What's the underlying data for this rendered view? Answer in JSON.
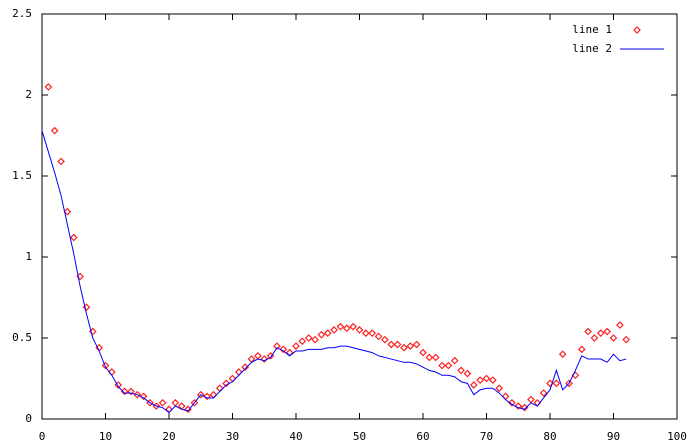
{
  "chart_data": {
    "type": "line",
    "xlim": [
      0,
      100
    ],
    "xticks": [
      0,
      10,
      20,
      30,
      40,
      50,
      60,
      70,
      80,
      90,
      100
    ],
    "ylim": [
      0,
      2.5
    ],
    "yticks": [
      0,
      0.5,
      1,
      1.5,
      2,
      2.5
    ],
    "legend": "top-right",
    "series": [
      {
        "name": "line 1",
        "style": "points",
        "color": "#ff2020",
        "x": [
          1,
          2,
          3,
          4,
          5,
          6,
          7,
          8,
          9,
          10,
          11,
          12,
          13,
          14,
          15,
          16,
          17,
          18,
          19,
          20,
          21,
          22,
          23,
          24,
          25,
          26,
          27,
          28,
          29,
          30,
          31,
          32,
          33,
          34,
          35,
          36,
          37,
          38,
          39,
          40,
          41,
          42,
          43,
          44,
          45,
          46,
          47,
          48,
          49,
          50,
          51,
          52,
          53,
          54,
          55,
          56,
          57,
          58,
          59,
          60,
          61,
          62,
          63,
          64,
          65,
          66,
          67,
          68,
          69,
          70,
          71,
          72,
          73,
          74,
          75,
          76,
          77,
          78,
          79,
          80,
          81,
          82,
          83,
          84,
          85,
          86,
          87,
          88,
          89,
          90,
          91,
          92
        ],
        "values": [
          2.05,
          1.78,
          1.59,
          1.28,
          1.12,
          0.88,
          0.69,
          0.54,
          0.44,
          0.33,
          0.29,
          0.21,
          0.17,
          0.17,
          0.15,
          0.14,
          0.1,
          0.08,
          0.1,
          0.06,
          0.1,
          0.08,
          0.06,
          0.1,
          0.15,
          0.14,
          0.15,
          0.19,
          0.22,
          0.25,
          0.29,
          0.32,
          0.37,
          0.39,
          0.37,
          0.39,
          0.45,
          0.43,
          0.41,
          0.45,
          0.48,
          0.5,
          0.49,
          0.52,
          0.53,
          0.55,
          0.57,
          0.56,
          0.57,
          0.55,
          0.53,
          0.53,
          0.51,
          0.49,
          0.46,
          0.46,
          0.44,
          0.45,
          0.46,
          0.41,
          0.38,
          0.38,
          0.33,
          0.33,
          0.36,
          0.3,
          0.28,
          0.21,
          0.24,
          0.25,
          0.24,
          0.19,
          0.14,
          0.1,
          0.08,
          0.07,
          0.12,
          0.1,
          0.16,
          0.22,
          0.22,
          0.4,
          0.22,
          0.27,
          0.43,
          0.54,
          0.5,
          0.53,
          0.54,
          0.5,
          0.58,
          0.49
        ]
      },
      {
        "name": "line 2",
        "style": "line",
        "color": "#0000ff",
        "x": [
          0,
          1,
          2,
          3,
          4,
          5,
          6,
          7,
          8,
          9,
          10,
          11,
          12,
          13,
          14,
          15,
          16,
          17,
          18,
          19,
          20,
          21,
          22,
          23,
          24,
          25,
          26,
          27,
          28,
          29,
          30,
          31,
          32,
          33,
          34,
          35,
          36,
          37,
          38,
          39,
          40,
          41,
          42,
          43,
          44,
          45,
          46,
          47,
          48,
          49,
          50,
          51,
          52,
          53,
          54,
          55,
          56,
          57,
          58,
          59,
          60,
          61,
          62,
          63,
          64,
          65,
          66,
          67,
          68,
          69,
          70,
          71,
          72,
          73,
          74,
          75,
          76,
          77,
          78,
          79,
          80,
          81,
          82,
          83,
          84,
          85,
          86,
          87,
          88,
          89,
          90,
          91,
          92
        ],
        "values": [
          1.78,
          1.65,
          1.52,
          1.38,
          1.2,
          1.02,
          0.82,
          0.65,
          0.5,
          0.42,
          0.32,
          0.27,
          0.2,
          0.16,
          0.16,
          0.15,
          0.13,
          0.1,
          0.08,
          0.07,
          0.04,
          0.08,
          0.06,
          0.05,
          0.1,
          0.15,
          0.13,
          0.13,
          0.17,
          0.21,
          0.23,
          0.27,
          0.31,
          0.35,
          0.37,
          0.36,
          0.38,
          0.44,
          0.42,
          0.39,
          0.42,
          0.42,
          0.43,
          0.43,
          0.43,
          0.44,
          0.44,
          0.45,
          0.45,
          0.44,
          0.43,
          0.42,
          0.41,
          0.39,
          0.38,
          0.37,
          0.36,
          0.35,
          0.35,
          0.34,
          0.32,
          0.3,
          0.29,
          0.27,
          0.27,
          0.26,
          0.23,
          0.22,
          0.15,
          0.18,
          0.19,
          0.19,
          0.16,
          0.12,
          0.09,
          0.07,
          0.06,
          0.1,
          0.08,
          0.13,
          0.18,
          0.3,
          0.18,
          0.22,
          0.3,
          0.39,
          0.37,
          0.37,
          0.37,
          0.35,
          0.4,
          0.36,
          0.37
        ]
      }
    ]
  }
}
